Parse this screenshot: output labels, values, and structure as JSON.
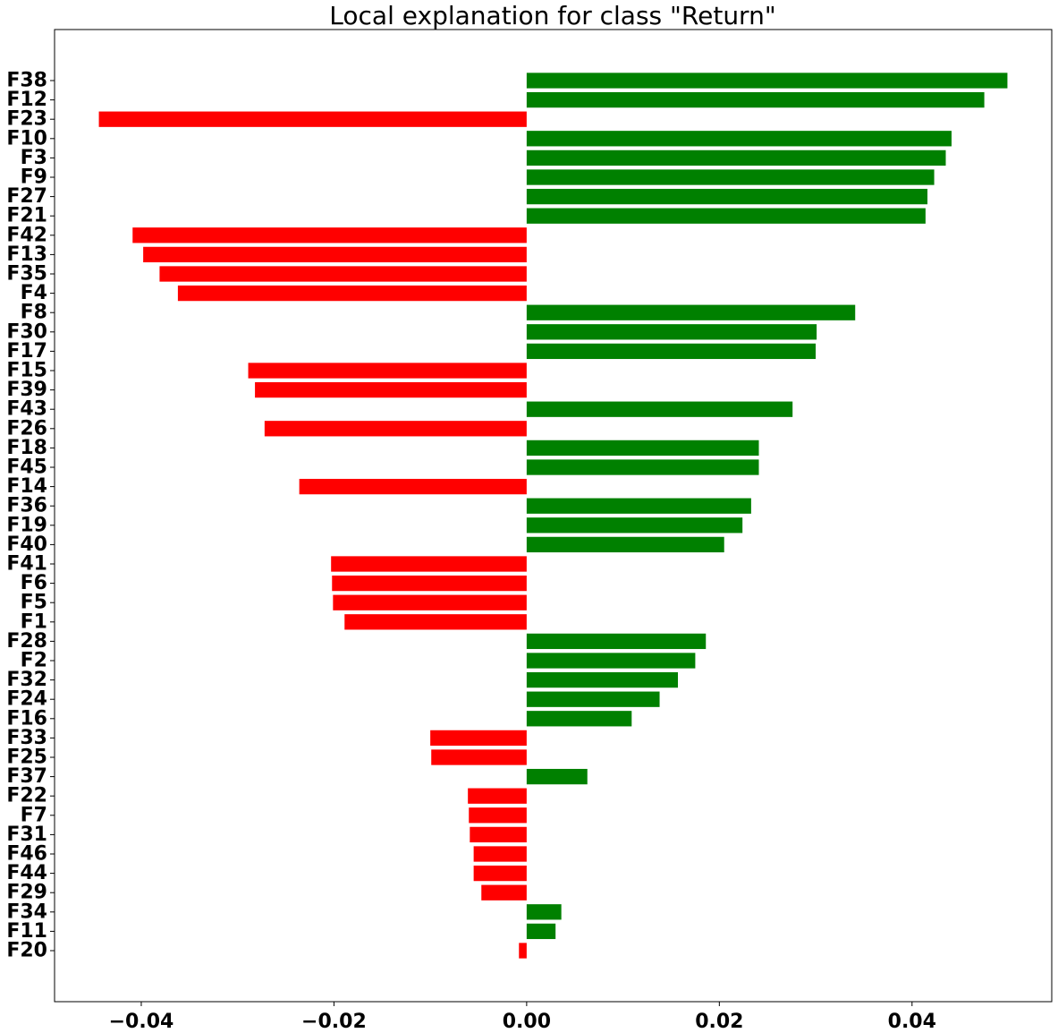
{
  "chart_data": {
    "type": "bar",
    "orientation": "horizontal",
    "title": "Local explanation for class \"Return\"",
    "xlabel": "",
    "ylabel": "",
    "xlim": [
      -0.049,
      0.0545
    ],
    "grid": false,
    "legend": "none",
    "colors": {
      "positive": "#008000",
      "negative": "#ff0000"
    },
    "x_ticks": [
      -0.04,
      -0.02,
      0.0,
      0.02,
      0.04
    ],
    "x_tick_labels": [
      "−0.04",
      "−0.02",
      "0.00",
      "0.02",
      "0.04"
    ],
    "categories": [
      "F38",
      "F12",
      "F23",
      "F10",
      "F3",
      "F9",
      "F27",
      "F21",
      "F42",
      "F13",
      "F35",
      "F4",
      "F8",
      "F30",
      "F17",
      "F15",
      "F39",
      "F43",
      "F26",
      "F18",
      "F45",
      "F14",
      "F36",
      "F19",
      "F40",
      "F41",
      "F6",
      "F5",
      "F1",
      "F28",
      "F2",
      "F32",
      "F24",
      "F16",
      "F33",
      "F25",
      "F37",
      "F22",
      "F7",
      "F31",
      "F46",
      "F44",
      "F29",
      "F34",
      "F11",
      "F20"
    ],
    "values": [
      0.0499,
      0.0475,
      -0.0444,
      0.0441,
      0.0435,
      0.0423,
      0.0416,
      0.0414,
      -0.0409,
      -0.0398,
      -0.0381,
      -0.0362,
      0.0341,
      0.0301,
      0.03,
      -0.0289,
      -0.0282,
      0.0276,
      -0.0272,
      0.0241,
      0.0241,
      -0.0236,
      0.0233,
      0.0224,
      0.0205,
      -0.0203,
      -0.0202,
      -0.0201,
      -0.0189,
      0.0186,
      0.0175,
      0.0157,
      0.0138,
      0.0109,
      -0.01,
      -0.0099,
      0.0063,
      -0.0061,
      -0.006,
      -0.0059,
      -0.0055,
      -0.0055,
      -0.0047,
      0.0036,
      0.003,
      -0.0008
    ]
  }
}
